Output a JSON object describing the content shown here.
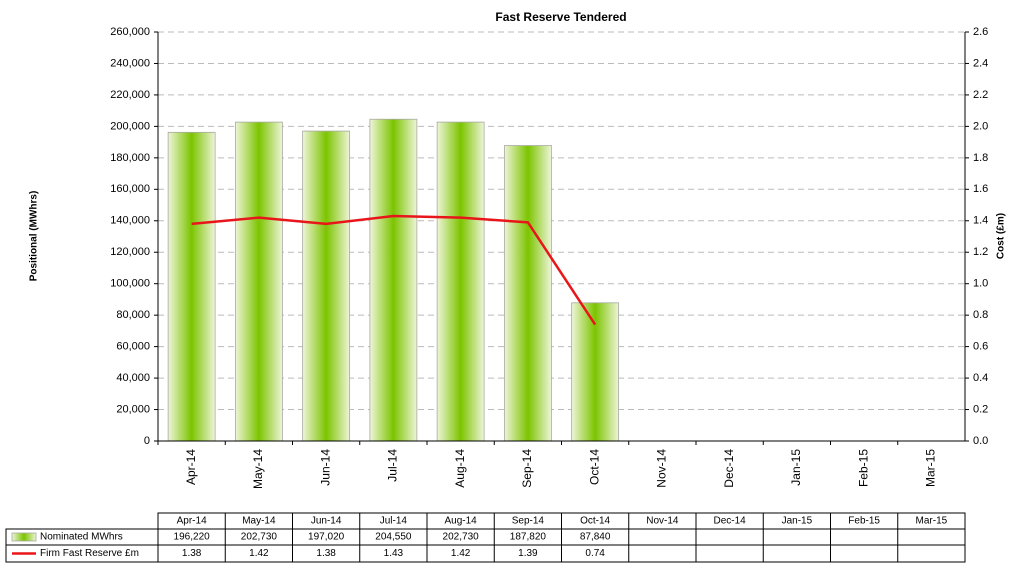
{
  "chart_data": {
    "type": "bar-line",
    "title": "Fast Reserve Tendered",
    "y_label": "Positional (MWhrs)",
    "y2_label": "Cost (£m)",
    "categories": [
      "Apr-14",
      "May-14",
      "Jun-14",
      "Jul-14",
      "Aug-14",
      "Sep-14",
      "Oct-14",
      "Nov-14",
      "Dec-14",
      "Jan-15",
      "Feb-15",
      "Mar-15"
    ],
    "series": [
      {
        "name": "Nominated MWhrs",
        "type": "bar",
        "color": "#7cc400",
        "values": [
          196220,
          202730,
          197020,
          204550,
          202730,
          187820,
          87840,
          null,
          null,
          null,
          null,
          null
        ],
        "value_labels": [
          "196,220",
          "202,730",
          "197,020",
          "204,550",
          "202,730",
          "187,820",
          "87,840",
          null,
          null,
          null,
          null,
          null
        ]
      },
      {
        "name": "Firm Fast Reserve £m",
        "type": "line",
        "axis": "y2",
        "color": "#e8161b",
        "values": [
          1.38,
          1.42,
          1.38,
          1.43,
          1.42,
          1.39,
          0.74,
          null,
          null,
          null,
          null,
          null
        ]
      }
    ],
    "ylim": [
      0,
      260000
    ],
    "yticks": [
      0,
      {
        "value": 20000,
        "label": "20,000"
      },
      {
        "value": 40000,
        "label": "40,000"
      },
      {
        "value": 60000,
        "label": "60,000"
      },
      {
        "value": 80000,
        "label": "80,000"
      },
      {
        "value": 100000,
        "label": "100,000"
      },
      {
        "value": 120000,
        "label": "120,000"
      },
      {
        "value": 140000,
        "label": "140,000"
      },
      {
        "value": 160000,
        "label": "160,000"
      },
      {
        "value": 180000,
        "label": "180,000"
      },
      {
        "value": 200000,
        "label": "200,000"
      },
      {
        "value": 220000,
        "label": "220,000"
      },
      {
        "value": 240000,
        "label": "240,000"
      },
      {
        "value": 260000,
        "label": "260,000"
      }
    ],
    "y2lim": [
      0,
      2.6
    ],
    "y2ticks": [
      {
        "value": 0,
        "label": "0.0"
      },
      0.2,
      0.4,
      0.6,
      0.8,
      {
        "value": 1,
        "label": "1.0"
      },
      1.2,
      1.4,
      1.6,
      1.8,
      {
        "value": 2,
        "label": "2.0"
      },
      2.2,
      2.4,
      2.6
    ],
    "grid": true
  }
}
